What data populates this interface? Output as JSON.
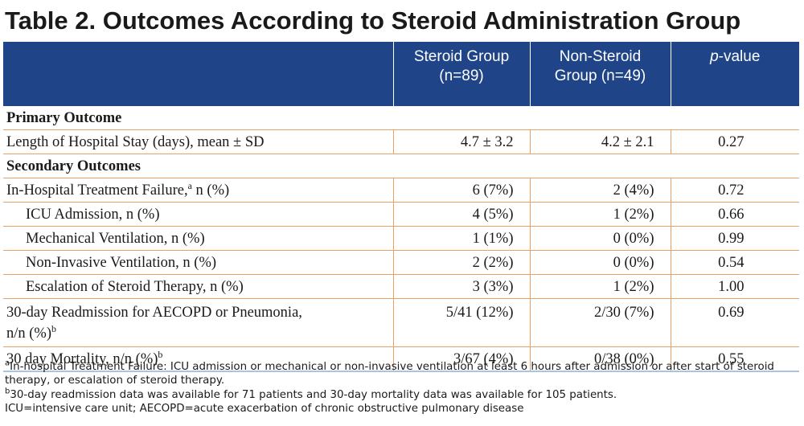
{
  "title": "Table 2. Outcomes According to Steroid Administration Group",
  "header": {
    "col1": "",
    "col2_line1": "Steroid Group",
    "col2_line2": "(n=89)",
    "col3_line1": "Non-Steroid",
    "col3_line2": "Group (n=49)",
    "col4_italic": "p",
    "col4_rest": "-value"
  },
  "rows": [
    {
      "type": "section",
      "label": "Primary Outcome"
    },
    {
      "label": "Length of Hospital Stay (days), mean ± SD",
      "steroid": "4.7 ± 3.2",
      "nonsteroid": "4.2 ± 2.1",
      "p": "0.27"
    },
    {
      "type": "section",
      "label": "Secondary Outcomes"
    },
    {
      "label": "In-Hospital Treatment Failure,",
      "sup": "a",
      "label_after": " n (%)",
      "steroid": "6 (7%)",
      "nonsteroid": "2 (4%)",
      "p": "0.72"
    },
    {
      "label": "ICU Admission, n (%)",
      "steroid": "4 (5%)",
      "nonsteroid": "1 (2%)",
      "p": "0.66"
    },
    {
      "label": "Mechanical Ventilation, n (%)",
      "steroid": "1 (1%)",
      "nonsteroid": "0 (0%)",
      "p": "0.99"
    },
    {
      "label": "Non-Invasive Ventilation, n (%)",
      "steroid": "2 (2%)",
      "nonsteroid": "0 (0%)",
      "p": "0.54"
    },
    {
      "label": "Escalation of Steroid Therapy, n (%)",
      "steroid": "3 (3%)",
      "nonsteroid": "1 (2%)",
      "p": "1.00"
    },
    {
      "label": "30-day Readmission for AECOPD or Pneumonia,",
      "label_line2": "n/n (%)",
      "sup": "b",
      "steroid": "5/41 (12%)",
      "nonsteroid": "2/30 (7%)",
      "p": "0.69"
    },
    {
      "label": "30 day Mortality, n/n (%)",
      "sup": "b",
      "steroid": "3/67 (4%)",
      "nonsteroid": "0/38 (0%)",
      "p": "0.55"
    }
  ],
  "footnotes": {
    "a_mark": "a",
    "a_text": "In-hospital Treatment Failure: ICU admission or mechanical or non-invasive ventilation at least 6 hours after admission or after start of steroid therapy, or escalation of steroid therapy.",
    "b_mark": "b",
    "b_text": "30-day readmission data was available for 71 patients and 30-day mortality data was available for 105 patients.",
    "abbrev": "ICU=intensive care unit; AECOPD=acute exacerbation of chronic obstructive pulmonary disease"
  },
  "colors": {
    "header_bg": "#1f4487",
    "row_rule": "#e8a268",
    "bottom_rule": "#a8c4de"
  }
}
